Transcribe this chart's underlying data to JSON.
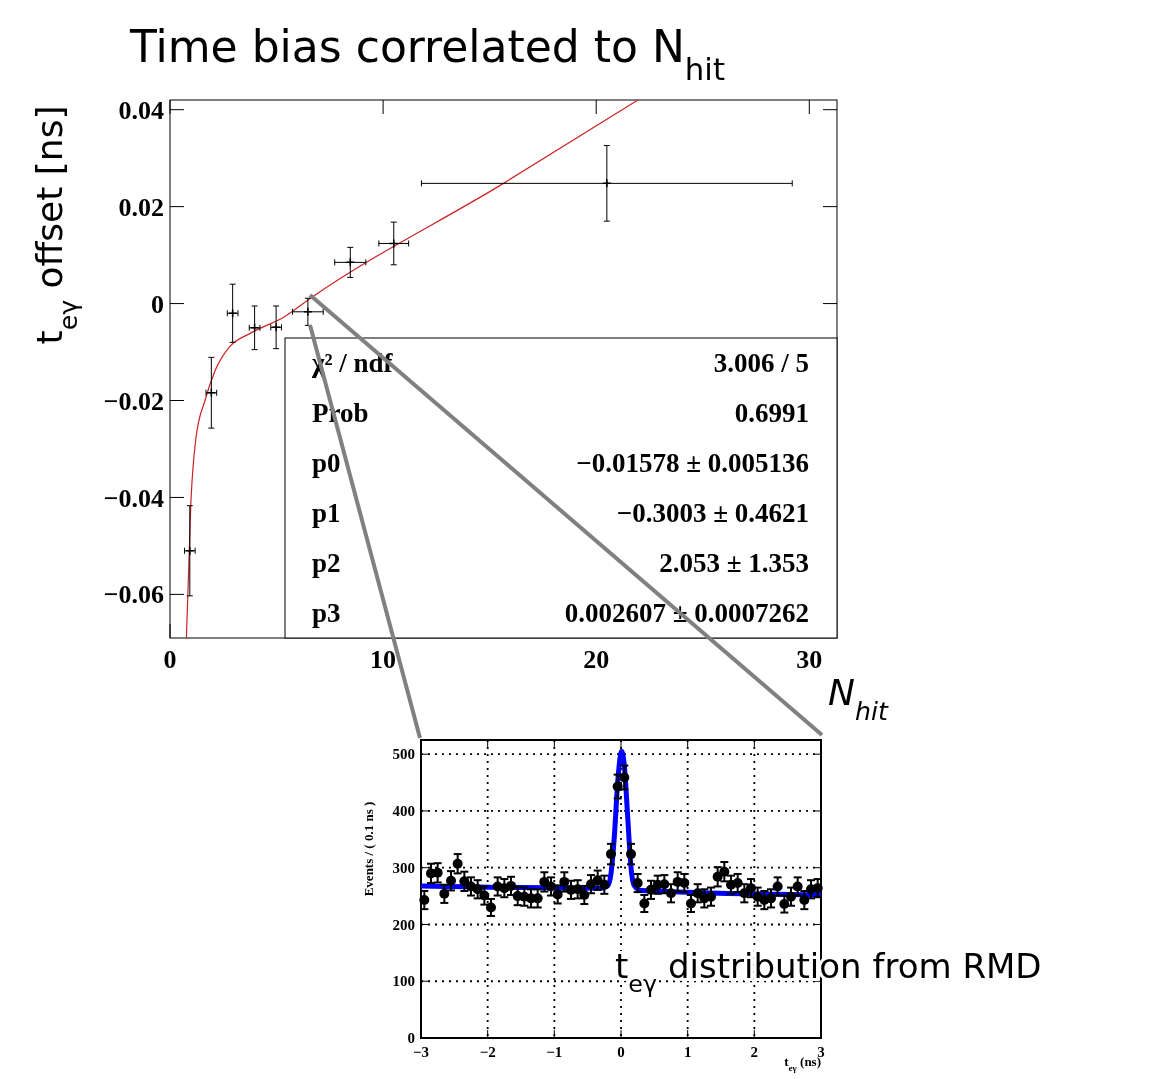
{
  "chart_data": [
    {
      "type": "scatter",
      "title": "Time bias correlated to N$_{hit}$",
      "xlabel": "N$_{hit}$",
      "ylabel": "t$_{eγ}$ offset [ns]",
      "xlim": [
        0,
        31.3
      ],
      "ylim": [
        -0.069,
        0.042
      ],
      "xticks": [
        0,
        10,
        20,
        30
      ],
      "yticks": [
        {
          "value": -0.06,
          "label": "−0.06"
        },
        {
          "value": -0.04,
          "label": "−0.04"
        },
        {
          "value": -0.02,
          "label": "−0.02"
        },
        0,
        0.02,
        0.04
      ],
      "series": [
        {
          "color": "#000000",
          "marker": "cross",
          "x": [
            0.93,
            1.94,
            2.94,
            3.97,
            4.98,
            6.47,
            8.46,
            10.5,
            20.5
          ],
          "values": [
            -0.051,
            -0.0184,
            -0.002,
            -0.005,
            -0.0049,
            -0.0017,
            0.0085,
            0.0124,
            0.0248
          ],
          "errors": [
            0.0093,
            0.0073,
            0.006,
            0.0045,
            0.0044,
            0.0028,
            0.0031,
            0.0044,
            0.0078
          ],
          "xerrors": [
            0.25,
            0.25,
            0.25,
            0.25,
            0.25,
            0.72,
            0.73,
            0.7,
            [
              11.8,
              29.2
            ]
          ]
        },
        {
          "type": "line",
          "color": "#cc2222",
          "x": [
            0.77,
            0.98,
            1.21,
            1.64,
            2.1,
            2.8,
            3.74,
            5.37,
            6.66,
            15.65,
            21.96
          ],
          "values": [
            -0.069,
            -0.041,
            -0.028,
            -0.02,
            -0.014,
            -0.0089,
            -0.0062,
            -0.0027,
            0.0013,
            0.0248,
            0.042
          ]
        }
      ],
      "annotations": [
        "χ² / ndf",
        "3.006 / 5",
        "Prob",
        "0.6991",
        "p0",
        "−0.01578  ± 0.005136",
        "p1",
        "−0.3003  ± 0.4621",
        "p2",
        "2.053  ± 1.353",
        "p3",
        "0.002607  ± 0.0007262"
      ]
    },
    {
      "type": "scatter",
      "xlabel": "t$_{eγ}$ (ns)",
      "ylabel": "Events / ( 0.1 ns )",
      "grid": true,
      "xlim": [
        -3,
        3
      ],
      "ylim": [
        0,
        525
      ],
      "xticks": [
        {
          "value": -3,
          "label": "−3"
        },
        {
          "value": -2,
          "label": "−2"
        },
        {
          "value": -1,
          "label": "−1"
        },
        0,
        1,
        2,
        3
      ],
      "yticks": [
        0,
        100,
        200,
        300,
        400,
        500
      ],
      "series": [
        {
          "color": "#000000",
          "marker": "circle",
          "x": [
            -2.95,
            -2.85,
            -2.75,
            -2.65,
            -2.55,
            -2.45,
            -2.35,
            -2.25,
            -2.15,
            -2.05,
            -1.95,
            -1.85,
            -1.75,
            -1.65,
            -1.55,
            -1.45,
            -1.35,
            -1.25,
            -1.15,
            -1.05,
            -0.95,
            -0.85,
            -0.75,
            -0.65,
            -0.55,
            -0.45,
            -0.35,
            -0.25,
            -0.15,
            -0.05,
            0.05,
            0.15,
            0.25,
            0.35,
            0.45,
            0.55,
            0.65,
            0.75,
            0.85,
            0.95,
            1.05,
            1.15,
            1.25,
            1.35,
            1.45,
            1.55,
            1.65,
            1.75,
            1.85,
            1.95,
            2.05,
            2.15,
            2.25,
            2.35,
            2.45,
            2.55,
            2.65,
            2.75,
            2.85,
            2.95
          ],
          "values": [
            243,
            290,
            291,
            254,
            277,
            307,
            276,
            267,
            262,
            251,
            230,
            267,
            264,
            268,
            250,
            249,
            246,
            246,
            275,
            267,
            253,
            275,
            261,
            262,
            252,
            271,
            278,
            270,
            324,
            443,
            459,
            324,
            273,
            237,
            261,
            270,
            271,
            255,
            275,
            273,
            237,
            255,
            246,
            249,
            284,
            293,
            270,
            273,
            255,
            264,
            249,
            243,
            246,
            267,
            236,
            249,
            267,
            243,
            262,
            264
          ],
          "errors": [
            16,
            17,
            17,
            16,
            17,
            17,
            17,
            16,
            16,
            16,
            15,
            16,
            16,
            16,
            16,
            16,
            16,
            16,
            17,
            16,
            16,
            17,
            16,
            16,
            16,
            16,
            17,
            16,
            18,
            21,
            21,
            18,
            16,
            15,
            16,
            16,
            16,
            16,
            17,
            16,
            15,
            16,
            16,
            16,
            17,
            17,
            16,
            16,
            16,
            16,
            16,
            16,
            16,
            16,
            15,
            16,
            16,
            16,
            16,
            16
          ]
        },
        {
          "type": "line",
          "color": "#0000ff",
          "x": [
            -3,
            -0.3,
            -0.2,
            -0.15,
            -0.1,
            -0.05,
            0,
            0.01,
            0.05,
            0.1,
            0.15,
            0.2,
            0.3,
            3
          ],
          "values": [
            268,
            264,
            268,
            290,
            355,
            450,
            503,
            505,
            480,
            390,
            300,
            268,
            260,
            252
          ]
        }
      ],
      "annotations": [
        "t$_{eγ}$ distribution from RMD"
      ]
    }
  ]
}
